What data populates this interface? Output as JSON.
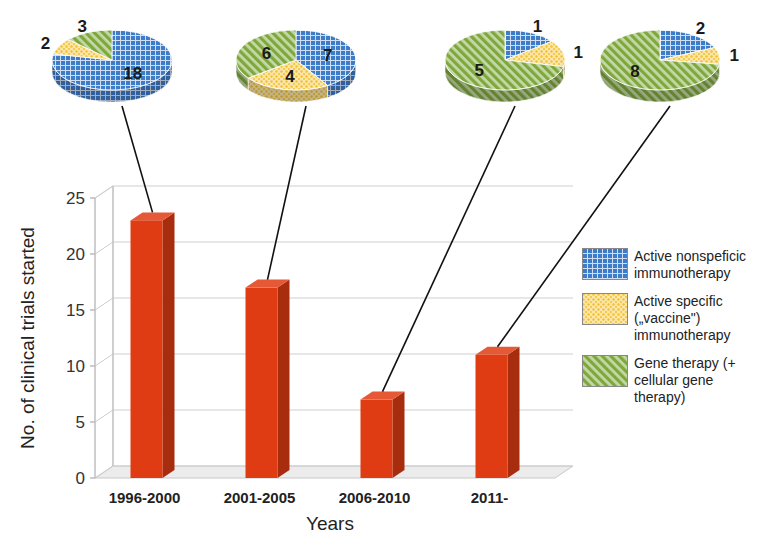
{
  "chart_data": {
    "type": "bar",
    "xlabel": "Years",
    "ylabel": "No. of clinical trials started",
    "categories": [
      "1996-2000",
      "2001-2005",
      "2006-2010",
      "2011-"
    ],
    "values": [
      23,
      17,
      7,
      11
    ],
    "color": "#e03c14",
    "ylim": [
      0,
      25
    ],
    "yticks": [
      0,
      5,
      10,
      15,
      20,
      25
    ],
    "grid": true,
    "legend": "right",
    "series": [
      {
        "name": "Active nonspeficic immunotherapy",
        "type": "pie",
        "color": "#3d7cc9",
        "data_labels": true,
        "values": [
          18,
          7,
          1,
          2
        ]
      },
      {
        "name": "Active specific („vaccine\") immunotherapy",
        "type": "pie",
        "color": "#f2c12e",
        "data_labels": true,
        "values": [
          2,
          4,
          1,
          1
        ]
      },
      {
        "name": "Gene therapy (+ cellular gene therapy)",
        "type": "pie",
        "color": "#7fa83c",
        "data_labels": true,
        "values": [
          3,
          6,
          5,
          8
        ]
      }
    ]
  }
}
